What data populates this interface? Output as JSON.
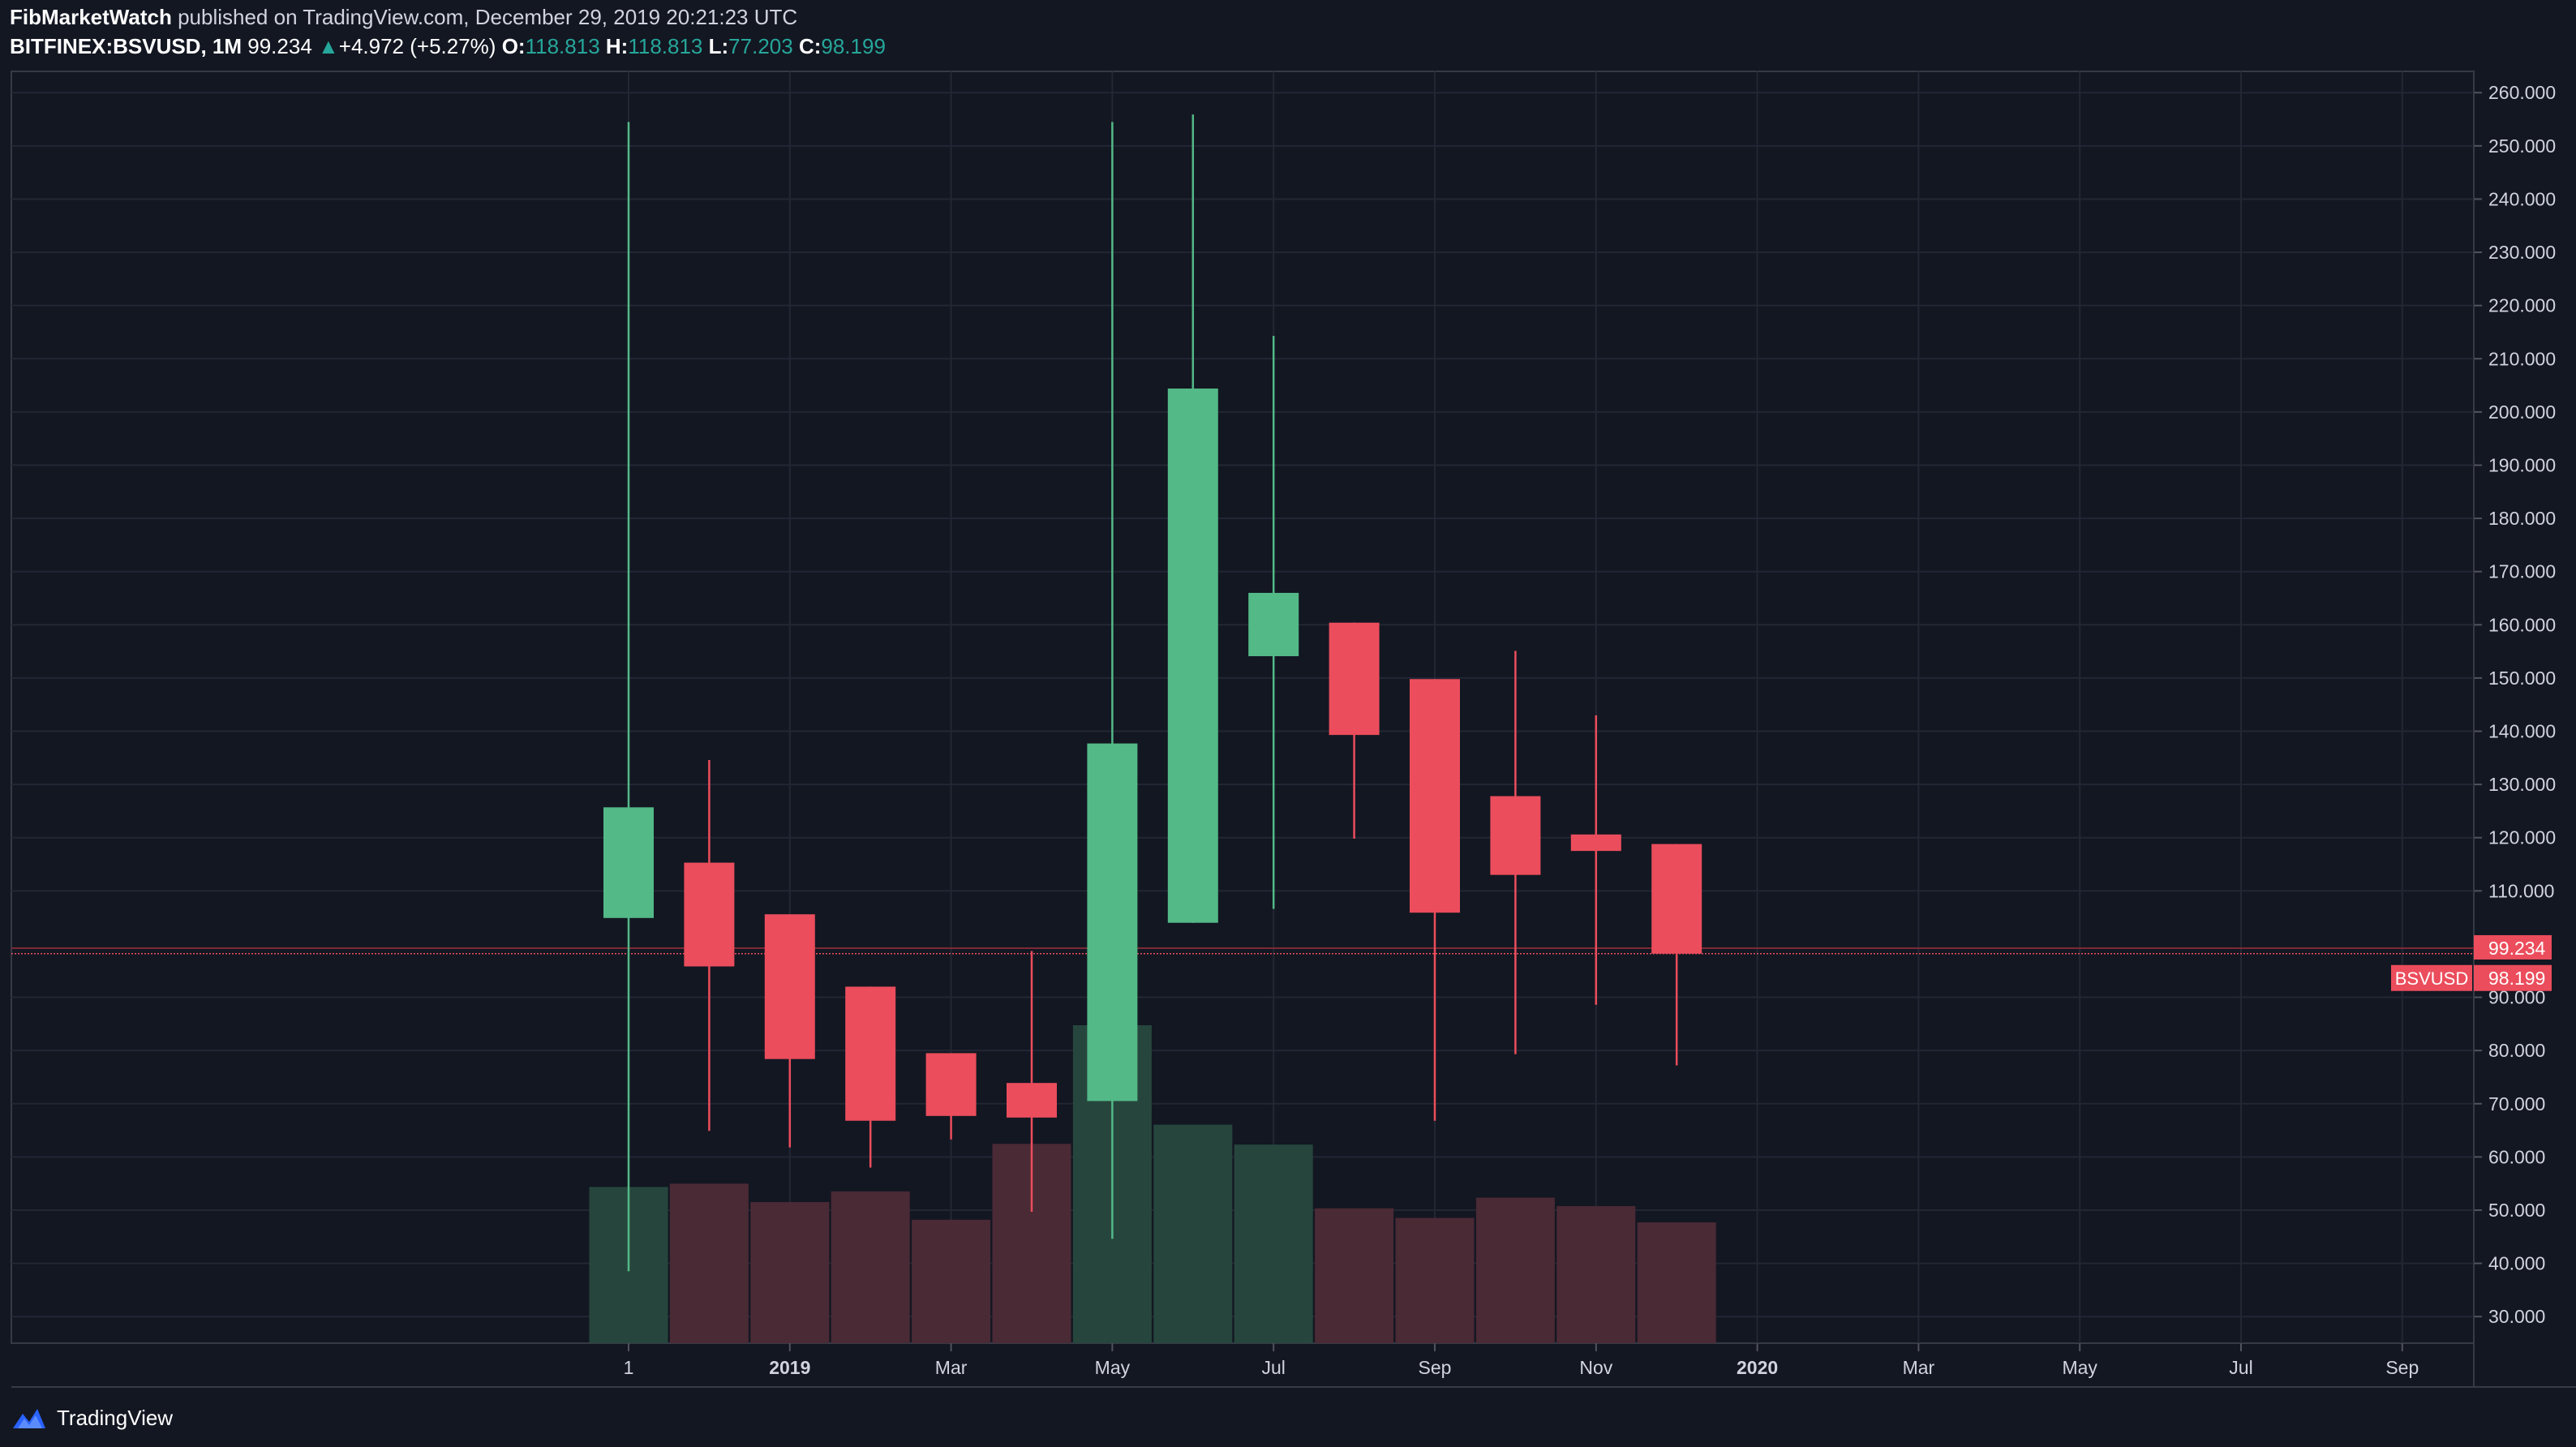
{
  "header": {
    "author": "FibMarketWatch",
    "published_text": "published on TradingView.com, December 29, 2019 20:21:23 UTC",
    "symbol": "BITFINEX:BSVUSD, 1M",
    "last_price": "99.234",
    "change": "+4.972 (+5.27%)",
    "change_arrow": "▲",
    "open_label": "O:",
    "open": "118.813",
    "high_label": "H:",
    "high": "118.813",
    "low_label": "L:",
    "low": "77.203",
    "close_label": "C:",
    "close": "98.199"
  },
  "footer": {
    "brand": "TradingView"
  },
  "colors": {
    "background": "#131722",
    "grid": "#232734",
    "up": "#53b987",
    "down": "#eb4d5c",
    "volume_up": "#26463d",
    "volume_down": "#4a2a35",
    "axis_text": "#d1d4dc"
  },
  "chart_data": {
    "type": "candlestick",
    "symbol_tag": "BSVUSD",
    "price_labels": {
      "last": "99.234",
      "close": "98.199"
    },
    "ylim": [
      25,
      264
    ],
    "y_ticks": [
      "30.000",
      "40.000",
      "50.000",
      "60.000",
      "70.000",
      "80.000",
      "90.000",
      "110.000",
      "120.000",
      "130.000",
      "140.000",
      "150.000",
      "160.000",
      "170.000",
      "180.000",
      "190.000",
      "200.000",
      "210.000",
      "220.000",
      "230.000",
      "240.000",
      "250.000",
      "260.000"
    ],
    "x_ticks": [
      {
        "label": "1",
        "index": 0,
        "bold": false
      },
      {
        "label": "2019",
        "index": 2,
        "bold": true
      },
      {
        "label": "Mar",
        "index": 4,
        "bold": false
      },
      {
        "label": "May",
        "index": 6,
        "bold": false
      },
      {
        "label": "Jul",
        "index": 8,
        "bold": false
      },
      {
        "label": "Sep",
        "index": 10,
        "bold": false
      },
      {
        "label": "Nov",
        "index": 12,
        "bold": false
      },
      {
        "label": "2020",
        "index": 14,
        "bold": true
      },
      {
        "label": "Mar",
        "index": 16,
        "bold": false
      },
      {
        "label": "May",
        "index": 18,
        "bold": false
      },
      {
        "label": "Jul",
        "index": 20,
        "bold": false
      },
      {
        "label": "Sep",
        "index": 22,
        "bold": false
      }
    ],
    "candles": [
      {
        "open": 104.9,
        "high": 254.5,
        "low": 38.5,
        "close": 125.7,
        "volume": 42.4
      },
      {
        "open": 115.3,
        "high": 134.6,
        "low": 64.9,
        "close": 95.8,
        "volume": 43.3
      },
      {
        "open": 105.6,
        "high": 105.6,
        "low": 61.8,
        "close": 78.4,
        "volume": 38.3
      },
      {
        "open": 92.0,
        "high": 92.0,
        "low": 58.0,
        "close": 66.8,
        "volume": 41.2
      },
      {
        "open": 79.5,
        "high": 79.5,
        "low": 63.3,
        "close": 67.7,
        "volume": 33.5
      },
      {
        "open": 73.9,
        "high": 98.7,
        "low": 49.7,
        "close": 67.4,
        "volume": 54.1
      },
      {
        "open": 70.5,
        "high": 254.5,
        "low": 44.6,
        "close": 137.7,
        "volume": 86.3
      },
      {
        "open": 104.0,
        "high": 255.9,
        "low": 104.0,
        "close": 204.4,
        "volume": 59.3
      },
      {
        "open": 154.1,
        "high": 214.3,
        "low": 106.6,
        "close": 166.0,
        "volume": 53.9
      },
      {
        "open": 160.4,
        "high": 160.4,
        "low": 119.8,
        "close": 139.3,
        "volume": 36.6
      },
      {
        "open": 149.8,
        "high": 149.8,
        "low": 66.8,
        "close": 105.9,
        "volume": 34.0
      },
      {
        "open": 127.8,
        "high": 155.1,
        "low": 79.3,
        "close": 113.0,
        "volume": 39.5
      },
      {
        "open": 120.6,
        "high": 143.0,
        "low": 88.6,
        "close": 117.5,
        "volume": 37.2
      },
      {
        "open": 118.8,
        "high": 118.8,
        "low": 77.2,
        "close": 98.2,
        "volume": 32.8
      }
    ],
    "volume_max": 86.3
  }
}
